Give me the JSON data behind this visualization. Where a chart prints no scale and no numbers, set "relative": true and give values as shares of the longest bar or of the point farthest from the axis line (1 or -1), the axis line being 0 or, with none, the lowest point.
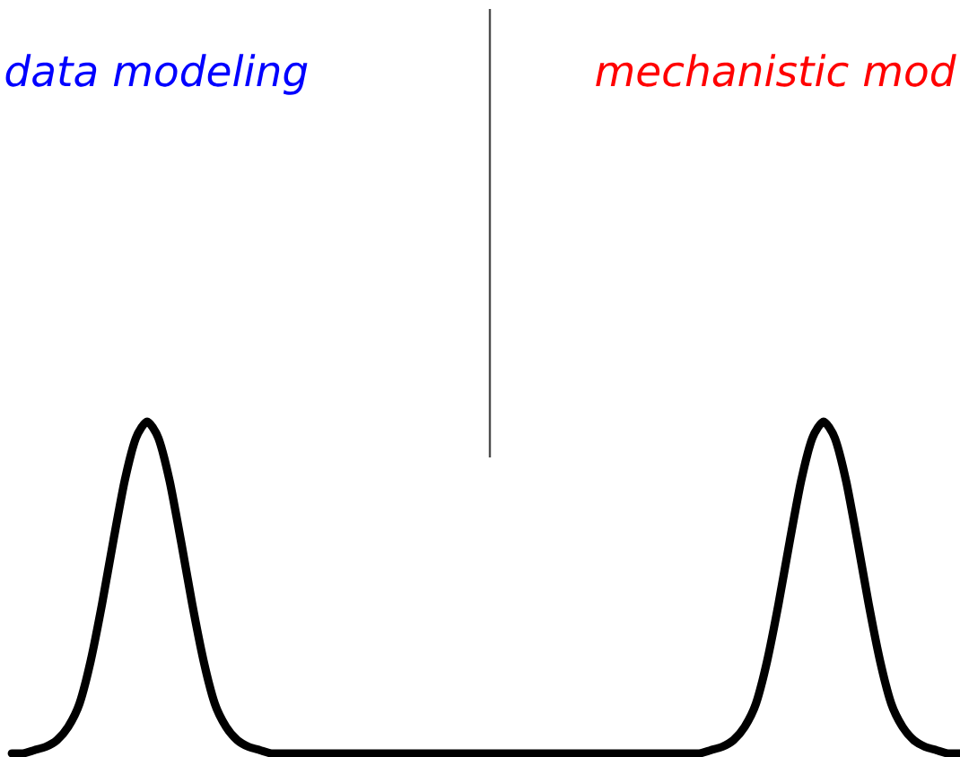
{
  "chart_data": {
    "type": "line",
    "relative": true,
    "categories": [
      null,
      null,
      null,
      null,
      null,
      null,
      null,
      null,
      null,
      null,
      null,
      null,
      null,
      null,
      null,
      null,
      null,
      null,
      null,
      null,
      null,
      null,
      null,
      null,
      null,
      null,
      null,
      null,
      null,
      null,
      null,
      null,
      null,
      null,
      null,
      null,
      null,
      null,
      null,
      null,
      null,
      null,
      null,
      null,
      null,
      null,
      null,
      null,
      null,
      null,
      null,
      null,
      null,
      null,
      null,
      null,
      null,
      null,
      null,
      null,
      null,
      null,
      null,
      null,
      null,
      null,
      null,
      null,
      null,
      null,
      null,
      null,
      null,
      null,
      null,
      null,
      null,
      null,
      null,
      null,
      null,
      null,
      null,
      null,
      null
    ],
    "series": [
      {
        "color": "#000000",
        "values": [
          0,
          0,
          0.01,
          0.02,
          0.04,
          0.08,
          0.15,
          0.28,
          0.45,
          0.64,
          0.82,
          0.95,
          1,
          0.95,
          0.82,
          0.64,
          0.45,
          0.28,
          0.15,
          0.08,
          0.04,
          0.02,
          0.01,
          0,
          0,
          0,
          0,
          0,
          0,
          0,
          0,
          0,
          0,
          0,
          0,
          0,
          0,
          0,
          0,
          0,
          0,
          0,
          0,
          0,
          0,
          0,
          0,
          0,
          0,
          0,
          0,
          0,
          0,
          0,
          0,
          0,
          0,
          0,
          0,
          0,
          0,
          0,
          0.01,
          0.02,
          0.04,
          0.08,
          0.15,
          0.28,
          0.45,
          0.64,
          0.82,
          0.95,
          1,
          0.95,
          0.82,
          0.64,
          0.45,
          0.28,
          0.15,
          0.08,
          0.04,
          0.02,
          0.01,
          0,
          0
        ]
      }
    ],
    "marker": "none",
    "line_style": "solid",
    "tick_labels": false,
    "annotations": [
      "data modeling",
      "mechanistic mod"
    ]
  }
}
